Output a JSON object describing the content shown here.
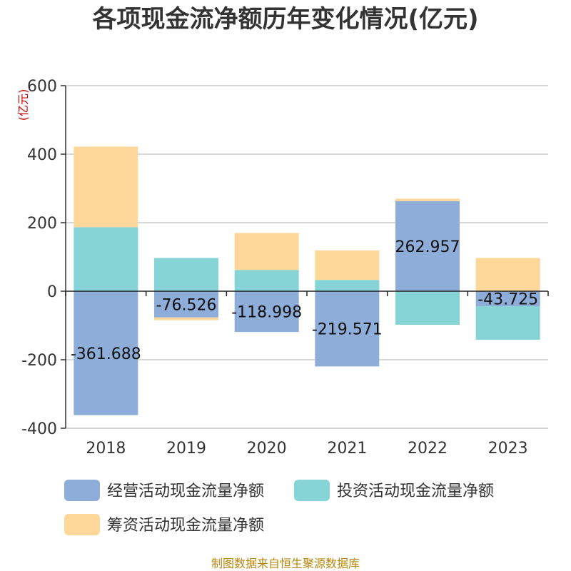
{
  "title": "各项现金流净额历年变化情况(亿元)",
  "source": "制图数据来自恒生聚源数据库",
  "chart_data": {
    "type": "bar",
    "stacked": true,
    "title": "各项现金流净额历年变化情况(亿元)",
    "ylabel": "(亿元)",
    "ylim": [
      -400,
      600
    ],
    "yticks": [
      600,
      400,
      200,
      0,
      -200,
      -400
    ],
    "grid": true,
    "legend_position": "bottom",
    "categories": [
      "2018",
      "2019",
      "2020",
      "2021",
      "2022",
      "2023"
    ],
    "series": [
      {
        "name": "经营活动现金流量净额",
        "color": "#8eadd9",
        "values": [
          -361.688,
          -76.526,
          -118.998,
          -219.571,
          262.957,
          -43.725
        ]
      },
      {
        "name": "投资活动现金流量净额",
        "color": "#86d4d6",
        "values": [
          187,
          97,
          62,
          33,
          -98,
          -98
        ]
      },
      {
        "name": "筹资活动现金流量净额",
        "color": "#fdd89a",
        "values": [
          235,
          -8,
          108,
          86,
          7,
          97
        ]
      }
    ],
    "data_labels": [
      "-361.688",
      "-76.526",
      "-118.998",
      "-219.571",
      "262.957",
      "-43.725"
    ]
  }
}
